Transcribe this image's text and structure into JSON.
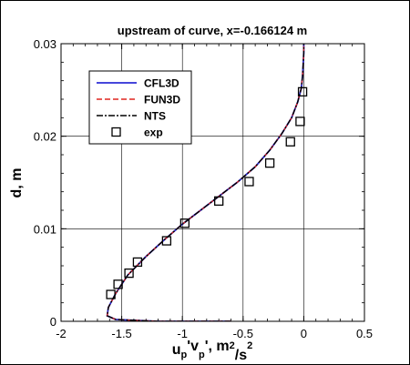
{
  "chart_data": {
    "type": "line",
    "title": "upstream of curve, x=-0.166124 m",
    "xlabel_parts": [
      "u",
      "p",
      "'v",
      "p",
      "', m",
      "2",
      "/s",
      "2"
    ],
    "ylabel": "d, m",
    "xlim": [
      -2,
      0.5
    ],
    "ylim": [
      0,
      0.03
    ],
    "xticks": [
      -2,
      -1.5,
      -1,
      -0.5,
      0,
      0.5
    ],
    "xtick_labels": [
      "-2",
      "-1.5",
      "-1",
      "-0.5",
      "0",
      "0.5"
    ],
    "yticks": [
      0,
      0.01,
      0.02,
      0.03
    ],
    "ytick_labels": [
      "0",
      "0.01",
      "0.02",
      "0.03"
    ],
    "grid": true,
    "legend_position": "upper-left",
    "series": [
      {
        "name": "CFL3D",
        "style": "solid",
        "color": "#2b2bd6",
        "x": [
          -0.6,
          -1.2,
          -1.55,
          -1.62,
          -1.61,
          -1.55,
          -1.45,
          -1.3,
          -1.15,
          -1.0,
          -0.85,
          -0.7,
          -0.55,
          -0.4,
          -0.28,
          -0.18,
          -0.1,
          -0.05,
          -0.02,
          -0.01,
          -0.005,
          0.0,
          0.0
        ],
        "y": [
          0.0,
          0.0,
          0.0002,
          0.0006,
          0.0015,
          0.003,
          0.005,
          0.007,
          0.0088,
          0.0105,
          0.012,
          0.0135,
          0.015,
          0.0167,
          0.0185,
          0.0203,
          0.022,
          0.0237,
          0.0252,
          0.0265,
          0.0277,
          0.029,
          0.03
        ]
      },
      {
        "name": "FUN3D",
        "style": "dashed",
        "color": "#e0251f",
        "x": [
          -0.6,
          -1.2,
          -1.55,
          -1.62,
          -1.61,
          -1.55,
          -1.45,
          -1.3,
          -1.15,
          -1.0,
          -0.85,
          -0.7,
          -0.55,
          -0.4,
          -0.28,
          -0.18,
          -0.1,
          -0.05,
          -0.02,
          -0.01,
          -0.005,
          0.0,
          0.0
        ],
        "y": [
          0.0,
          0.0,
          0.0002,
          0.0006,
          0.0015,
          0.003,
          0.005,
          0.007,
          0.0088,
          0.0105,
          0.012,
          0.0135,
          0.015,
          0.0167,
          0.0185,
          0.0203,
          0.022,
          0.0237,
          0.0252,
          0.0265,
          0.0277,
          0.029,
          0.03
        ]
      },
      {
        "name": "NTS",
        "style": "dashdot",
        "color": "#000000",
        "x": [
          -0.6,
          -1.2,
          -1.55,
          -1.62,
          -1.61,
          -1.55,
          -1.45,
          -1.3,
          -1.15,
          -1.0,
          -0.85,
          -0.7,
          -0.55,
          -0.4,
          -0.28,
          -0.18,
          -0.1,
          -0.05,
          -0.02,
          -0.01,
          -0.005,
          0.0,
          0.0
        ],
        "y": [
          0.0,
          0.0,
          0.0002,
          0.0006,
          0.0015,
          0.003,
          0.005,
          0.007,
          0.0088,
          0.0105,
          0.012,
          0.0135,
          0.015,
          0.0167,
          0.0185,
          0.0203,
          0.022,
          0.0237,
          0.0252,
          0.0265,
          0.0277,
          0.029,
          0.03
        ]
      },
      {
        "name": "exp",
        "style": "marker-square",
        "color": "#000000",
        "x": [
          -1.59,
          -1.53,
          -1.44,
          -1.37,
          -1.13,
          -0.98,
          -0.7,
          -0.45,
          -0.28,
          -0.11,
          -0.03,
          -0.01
        ],
        "y": [
          0.0029,
          0.004,
          0.0052,
          0.0064,
          0.0087,
          0.0106,
          0.013,
          0.0151,
          0.0171,
          0.0194,
          0.0216,
          0.0248
        ]
      }
    ]
  }
}
